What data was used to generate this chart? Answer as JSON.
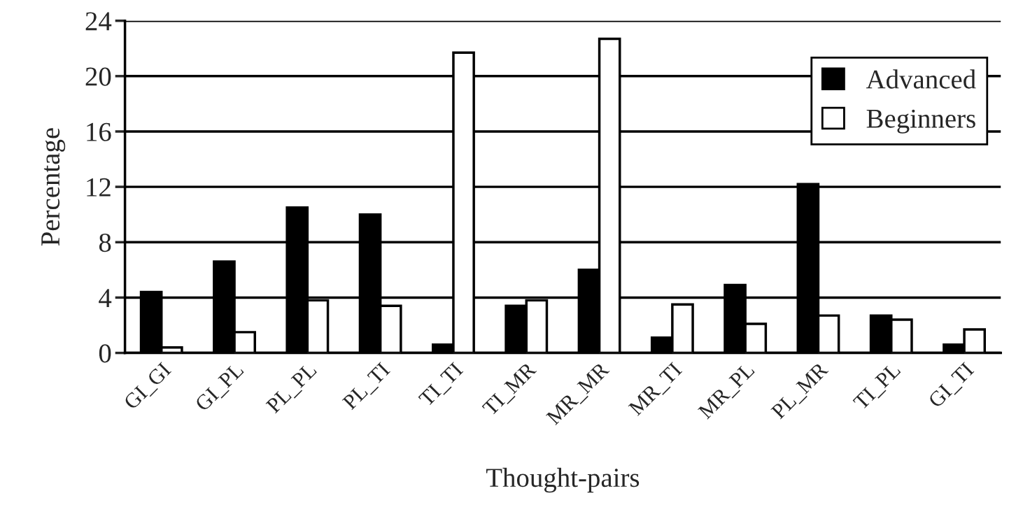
{
  "chart_data": {
    "type": "bar",
    "xlabel": "Thought-pairs",
    "ylabel": "Percentage",
    "categories": [
      "GI_GI",
      "GI_PL",
      "PL_PL",
      "PL_TI",
      "TI_TI",
      "TI_MR",
      "MR_MR",
      "MR_TI",
      "MR_PL",
      "PL_MR",
      "TI_PL",
      "GI_TI"
    ],
    "series": [
      {
        "name": "Advanced",
        "color": "#000000",
        "values": [
          4.4,
          6.6,
          10.5,
          10.0,
          0.6,
          3.4,
          6.0,
          1.1,
          4.9,
          12.2,
          2.7,
          0.6
        ]
      },
      {
        "name": "Beginners",
        "color": "#ffffff",
        "values": [
          0.4,
          1.5,
          3.8,
          3.4,
          21.7,
          3.8,
          22.7,
          3.5,
          2.1,
          2.7,
          2.4,
          1.7
        ]
      }
    ],
    "ylim": [
      0,
      24
    ],
    "yticks": [
      0,
      4,
      8,
      12,
      16,
      20,
      24
    ],
    "grid": "y",
    "legend": "top right"
  }
}
